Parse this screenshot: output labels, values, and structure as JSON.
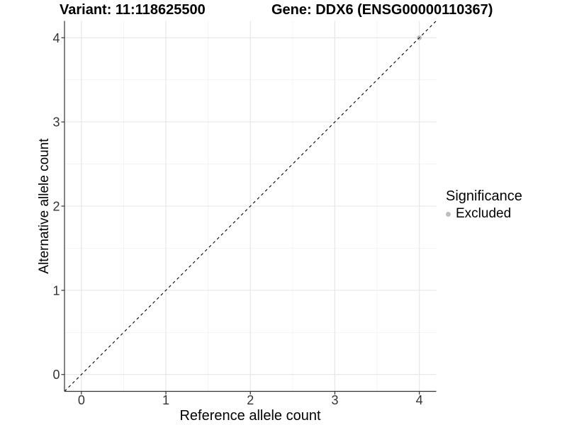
{
  "header": {
    "variant_title": "Variant: 11:118625500",
    "gene_title": "Gene: DDX6 (ENSG00000110367)"
  },
  "chart_data": {
    "type": "scatter",
    "xlabel": "Reference allele count",
    "ylabel": "Alternative allele count",
    "xlim": [
      -0.2,
      4.2
    ],
    "ylim": [
      -0.2,
      4.2
    ],
    "x_ticks": [
      0,
      1,
      2,
      3,
      4
    ],
    "y_ticks": [
      0,
      1,
      2,
      3,
      4
    ],
    "x_minor_ticks": [
      0.5,
      1.5,
      2.5,
      3.5
    ],
    "y_minor_ticks": [
      0.5,
      1.5,
      2.5,
      3.5
    ],
    "grid": "on",
    "reference_line": {
      "slope": 1,
      "intercept": 0,
      "style": "dashed",
      "color": "#000000"
    },
    "series": [
      {
        "name": "Excluded",
        "color": "#bebebe",
        "points": [
          {
            "x": 4,
            "y": 4
          }
        ]
      }
    ],
    "legend": {
      "title": "Significance",
      "position": "right",
      "entries": [
        {
          "label": "Excluded",
          "color": "#bebebe",
          "marker": "circle"
        }
      ]
    }
  },
  "colors": {
    "background": "#ffffff",
    "grid_major": "#e5e5e5",
    "grid_minor": "#f2f2f2",
    "axis_line": "#333333",
    "tick_text": "#333333",
    "title_text": "#000000"
  }
}
